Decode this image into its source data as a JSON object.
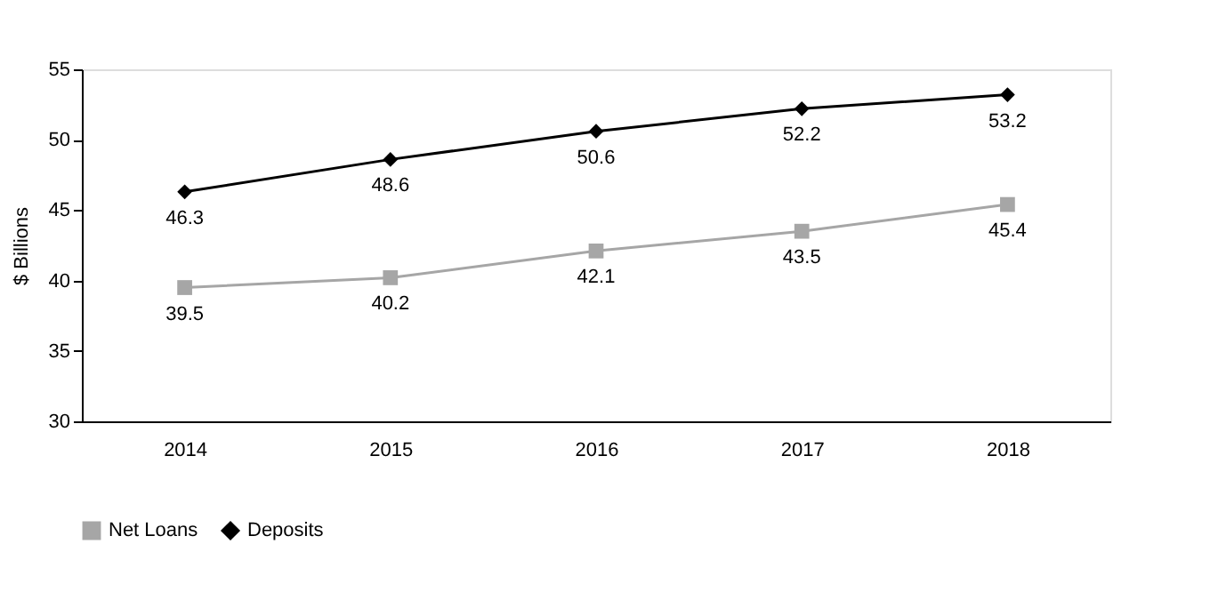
{
  "chart_data": {
    "type": "line",
    "ylabel": "$ Billions",
    "categories": [
      "2014",
      "2015",
      "2016",
      "2017",
      "2018"
    ],
    "series": [
      {
        "name": "Net Loans",
        "color": "#a6a6a6",
        "marker": "square",
        "values": [
          39.5,
          40.2,
          42.1,
          43.5,
          45.4
        ]
      },
      {
        "name": "Deposits",
        "color": "#000000",
        "marker": "diamond",
        "values": [
          46.3,
          48.6,
          50.6,
          52.2,
          53.2
        ]
      }
    ],
    "ylim": [
      30,
      55
    ],
    "yticks": [
      30,
      35,
      40,
      45,
      50,
      55
    ],
    "data_labels": true,
    "grid": false,
    "legend": "bottom",
    "line_style": "solid"
  }
}
